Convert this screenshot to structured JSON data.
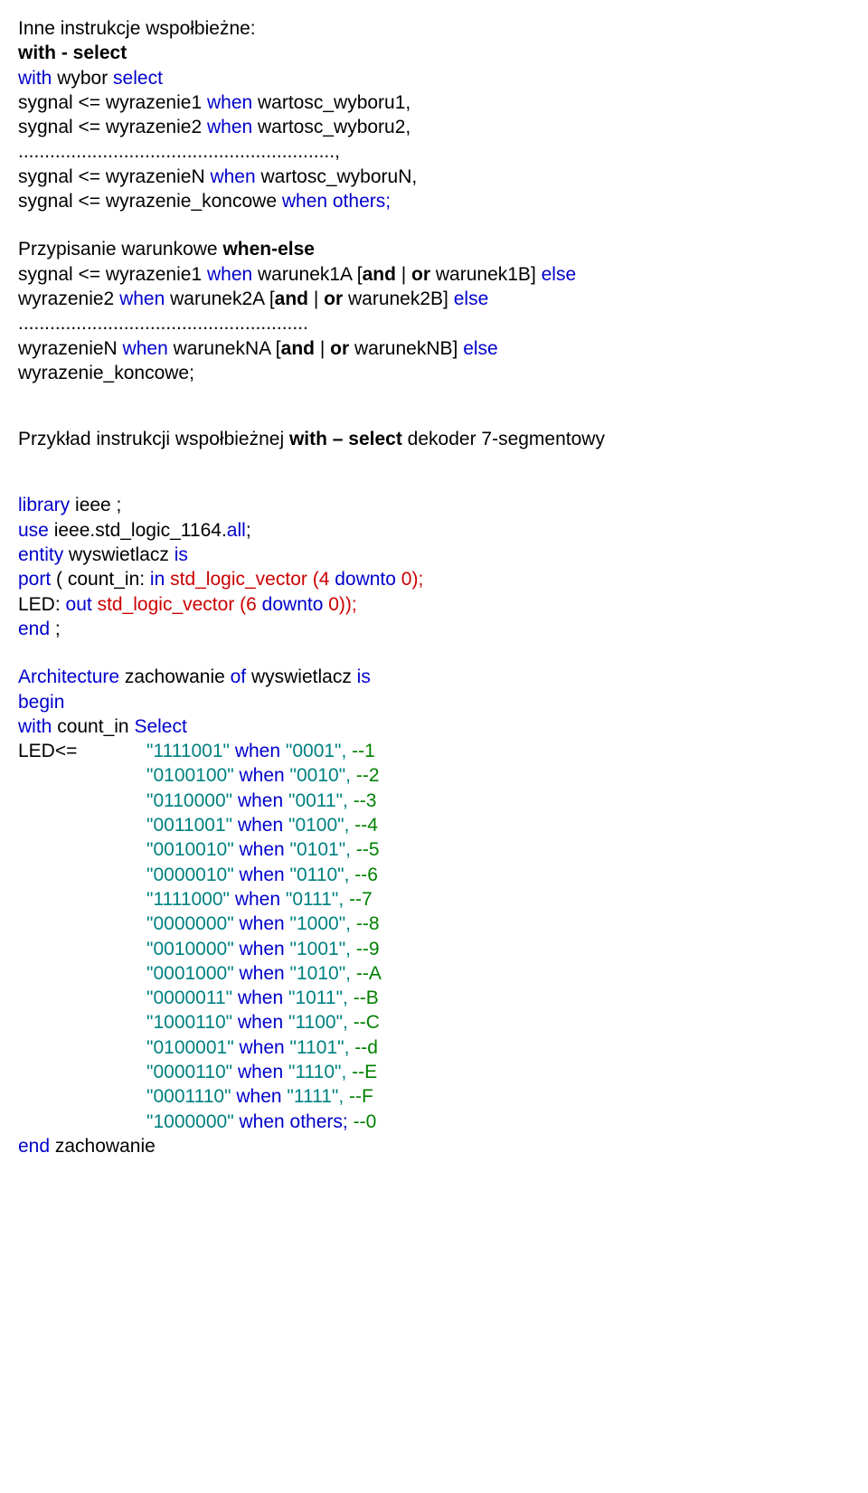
{
  "p1": {
    "l1a": "Inne instrukcje wspołbieżne:",
    "l2a": "with - select",
    "l3a": "with",
    "l3b": " wybor ",
    "l3c": "select",
    "l4a": "sygnal <= wyrazenie1 ",
    "l4b": "when",
    "l4c": " wartosc_wyboru1,",
    "l5a": "sygnal <= wyrazenie2 ",
    "l5b": "when",
    "l5c": " wartosc_wyboru2,",
    "l6a": "............................................................,",
    "l7a": "sygnal <= wyrazenieN ",
    "l7b": "when",
    "l7c": " wartosc_wyboruN,",
    "l8a": "sygnal <= wyrazenie_koncowe ",
    "l8b": "when",
    "l8c": " others;"
  },
  "p2": {
    "l1a": "Przypisanie warunkowe ",
    "l1b": "when-else",
    "l2a": "sygnal <= wyrazenie1 ",
    "l2b": "when",
    "l2c": " warunek1A [",
    "l2d": "and",
    "l2e": " | ",
    "l2f": "or",
    "l2g": " warunek1B] ",
    "l2h": "else",
    "l3a": "wyrazenie2 ",
    "l3b": "when",
    "l3c": " warunek2A [",
    "l3d": "and",
    "l3e": " | ",
    "l3f": "or",
    "l3g": " warunek2B] ",
    "l3h": "else",
    "l4a": ".......................................................",
    "l5a": "wyrazenieN ",
    "l5b": "when",
    "l5c": " warunekNA [",
    "l5d": "and",
    "l5e": " | ",
    "l5f": "or",
    "l5g": " warunekNB] ",
    "l5h": "else",
    "l6a": "wyrazenie_koncowe;"
  },
  "p3": {
    "l1a": "Przykład instrukcji wspołbieżnej ",
    "l1b": "with – select",
    "l1c": " dekoder 7-segmentowy"
  },
  "p4": {
    "l1a": "library",
    "l1b": " ieee ;",
    "l2a": "use",
    "l2b": " ieee.std_logic_1164.",
    "l2c": "all",
    "l2d": ";",
    "l3a": "entity",
    "l3b": " wyswietlacz ",
    "l3c": "is",
    "l4a": "port",
    "l4b": " ( count_in: ",
    "l4c": "in",
    "l4d": " std_logic_vector (4 ",
    "l4e": "downto",
    "l4f": " 0);",
    "l5a": "LED: ",
    "l5b": "out",
    "l5c": " std_logic_vector (6 ",
    "l5d": "downto",
    "l5e": " 0));",
    "l6a": "end",
    "l6b": " ;"
  },
  "p5": {
    "l1a": "Architecture",
    "l1b": " zachowanie ",
    "l1c": "of",
    "l1d": " wyswietlacz ",
    "l1e": "is",
    "l2a": "begin",
    "l3a": "with",
    "l3b": " count_in ",
    "l3c": "Select",
    "l4a": "LED<=",
    "rows": [
      {
        "v": "\"1111001\"",
        "w": " when ",
        "k": "\"0001\", ",
        "c": "--1"
      },
      {
        "v": "\"0100100\"",
        "w": " when ",
        "k": "\"0010\", ",
        "c": "--2"
      },
      {
        "v": "\"0110000\"",
        "w": " when ",
        "k": "\"0011\", ",
        "c": "--3"
      },
      {
        "v": "\"0011001\"",
        "w": " when ",
        "k": "\"0100\", ",
        "c": "--4"
      },
      {
        "v": "\"0010010\"",
        "w": " when ",
        "k": "\"0101\", ",
        "c": "--5"
      },
      {
        "v": "\"0000010\"",
        "w": " when ",
        "k": "\"0110\", ",
        "c": "--6"
      },
      {
        "v": "\"1111000\"",
        "w": " when ",
        "k": "\"0111\", ",
        "c": "--7"
      },
      {
        "v": "\"0000000\"",
        "w": " when ",
        "k": "\"1000\", ",
        "c": "--8"
      },
      {
        "v": "\"0010000\"",
        "w": " when ",
        "k": "\"1001\", ",
        "c": "--9"
      },
      {
        "v": "\"0001000\"",
        "w": " when ",
        "k": "\"1010\", ",
        "c": "--A"
      },
      {
        "v": "\"0000011\"",
        "w": " when ",
        "k": "\"1011\", ",
        "c": "--B"
      },
      {
        "v": "\"1000110\"",
        "w": " when ",
        "k": "\"1100\", ",
        "c": "--C"
      },
      {
        "v": "\"0100001\"",
        "w": " when ",
        "k": "\"1101\", ",
        "c": "--d"
      },
      {
        "v": "\"0000110\"",
        "w": " when ",
        "k": "\"1110\", ",
        "c": "--E"
      },
      {
        "v": "\"0001110\"",
        "w": " when ",
        "k": "\"1111\", ",
        "c": "--F"
      }
    ],
    "last_v": "\"1000000\"",
    "last_w": " when ",
    "last_k": "others; ",
    "last_c": "--0",
    "l_end_a": "end",
    "l_end_b": " zachowanie"
  }
}
